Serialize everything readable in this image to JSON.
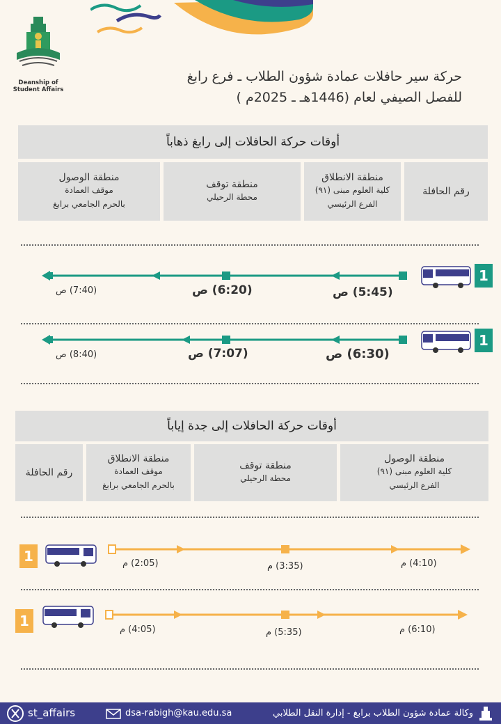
{
  "header": {
    "title_line1": "حركة سير حافلات عمادة شؤون الطلاب ـ فرع رابغ",
    "title_line2": "للفصل الصيفي لعام (1446هـ ـ 2025م )",
    "logo_caption": "Deanship of Student Affairs"
  },
  "colors": {
    "teal": "#1b9a84",
    "orange": "#f6b24a",
    "navy": "#3d3f8c",
    "gray": "#dfdfde"
  },
  "outbound": {
    "heading": "أوقات حركة الحافلات إلى رابغ ذهاباً",
    "columns": {
      "bus_no": "رقم الحافلة",
      "departure_title": "منطقة الانطلاق",
      "departure_l1": "كلية العلوم مبنى (٩١)",
      "departure_l2": "الفرع الرئيسي",
      "stop_title": "منطقة توقف",
      "stop_l1": "محطة الرحيلي",
      "arrival_title": "منطقة الوصول",
      "arrival_l1": "موقف العمادة",
      "arrival_l2": "بالحرم الجامعي برابغ"
    },
    "trips": [
      {
        "bus": "1",
        "depart": "(5:45) ص",
        "stop": "(6:20) ص",
        "arrive": "(7:40) ص"
      },
      {
        "bus": "1",
        "depart": "(6:30) ص",
        "stop": "(7:07) ص",
        "arrive": "(8:40) ص"
      }
    ]
  },
  "return": {
    "heading": "أوقات حركة الحافلات إلى جدة إياباً",
    "columns": {
      "arrival_title": "منطقة الوصول",
      "arrival_l1": "كلية العلوم مبنى (٩١)",
      "arrival_l2": "الفرع الرئيسي",
      "stop_title": "منطقة توقف",
      "stop_l1": "محطة الرحيلي",
      "departure_title": "منطقة الانطلاق",
      "departure_l1": "موقف العمادة",
      "departure_l2": "بالحرم الجامعي برابغ",
      "bus_no": "رقم الحافلة"
    },
    "trips": [
      {
        "bus": "1",
        "depart": "(2:05) م",
        "stop": "(3:35) م",
        "arrive": "(4:10) م"
      },
      {
        "bus": "1",
        "depart": "(4:05) م",
        "stop": "(5:35) م",
        "arrive": "(6:10) م"
      }
    ]
  },
  "footer": {
    "handle": "st_affairs",
    "email": "dsa-rabigh@kau.edu.sa",
    "agency": "وكالة عمادة شؤون الطلاب برابغ - إدارة النقل الطلابي"
  }
}
